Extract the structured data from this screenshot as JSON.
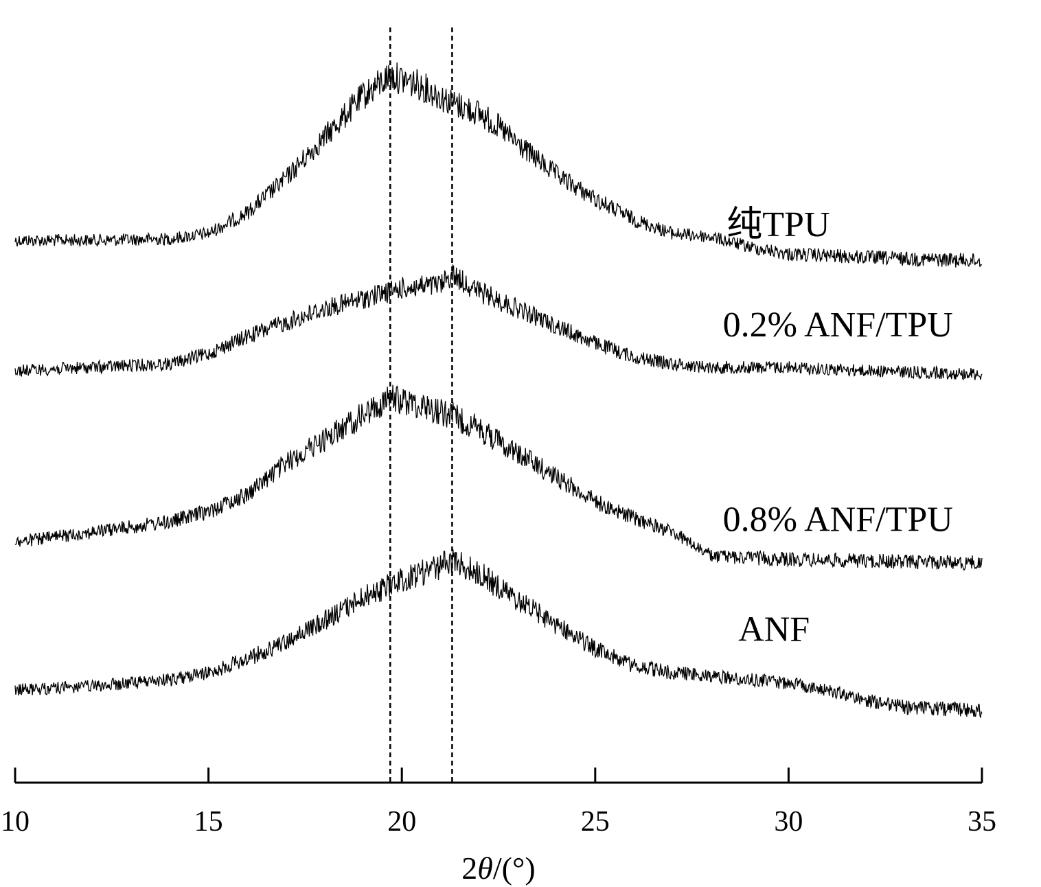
{
  "chart_data": {
    "type": "line",
    "title": "",
    "xlabel_prefix": "2",
    "xlabel_theta": "θ",
    "xlabel_suffix": "/(°)",
    "ylabel": "",
    "xlim": [
      10,
      35
    ],
    "xticks": [
      "10",
      "15",
      "20",
      "25",
      "30",
      "35"
    ],
    "y_axis_shown": false,
    "y_units": "stacked intensity (a.u., offset)",
    "reference_lines_x": [
      19.7,
      21.3
    ],
    "series": [
      {
        "name": "纯TPU",
        "label_x": 28.4,
        "baseline": 350,
        "points": [
          [
            10,
            0
          ],
          [
            12,
            0
          ],
          [
            14,
            2
          ],
          [
            15,
            10
          ],
          [
            16,
            40
          ],
          [
            17,
            90
          ],
          [
            18,
            150
          ],
          [
            19,
            210
          ],
          [
            19.7,
            240
          ],
          [
            20.5,
            225
          ],
          [
            21.3,
            200
          ],
          [
            22,
            185
          ],
          [
            22.5,
            165
          ],
          [
            23,
            140
          ],
          [
            24,
            95
          ],
          [
            25,
            60
          ],
          [
            26,
            30
          ],
          [
            27,
            10
          ],
          [
            28,
            5
          ],
          [
            29,
            -10
          ],
          [
            30,
            -20
          ],
          [
            32,
            -25
          ],
          [
            35,
            -30
          ]
        ]
      },
      {
        "name": "0.2% ANF/TPU",
        "label_x": 28.3,
        "baseline": 540,
        "points": [
          [
            10,
            0
          ],
          [
            12,
            5
          ],
          [
            14,
            10
          ],
          [
            15,
            25
          ],
          [
            16,
            50
          ],
          [
            17,
            70
          ],
          [
            18,
            90
          ],
          [
            19,
            105
          ],
          [
            20,
            120
          ],
          [
            21,
            125
          ],
          [
            21.3,
            140
          ],
          [
            22,
            115
          ],
          [
            23,
            90
          ],
          [
            24,
            65
          ],
          [
            25,
            40
          ],
          [
            26,
            20
          ],
          [
            27,
            10
          ],
          [
            28,
            5
          ],
          [
            30,
            5
          ],
          [
            32,
            0
          ],
          [
            35,
            -5
          ]
        ]
      },
      {
        "name": "0.8% ANF/TPU",
        "label_x": 28.3,
        "baseline": 790,
        "points": [
          [
            10,
            0
          ],
          [
            12,
            15
          ],
          [
            14,
            30
          ],
          [
            15,
            45
          ],
          [
            16,
            70
          ],
          [
            17,
            115
          ],
          [
            18,
            150
          ],
          [
            19,
            185
          ],
          [
            19.7,
            210
          ],
          [
            20.5,
            200
          ],
          [
            21.3,
            185
          ],
          [
            22,
            165
          ],
          [
            23,
            130
          ],
          [
            24,
            95
          ],
          [
            25,
            60
          ],
          [
            26,
            35
          ],
          [
            27,
            15
          ],
          [
            28,
            -20
          ],
          [
            30,
            -25
          ],
          [
            35,
            -30
          ]
        ]
      },
      {
        "name": "ANF",
        "label_x": 28.7,
        "baseline": 1005,
        "points": [
          [
            10,
            0
          ],
          [
            12,
            5
          ],
          [
            14,
            15
          ],
          [
            15,
            25
          ],
          [
            16,
            45
          ],
          [
            17,
            70
          ],
          [
            18,
            100
          ],
          [
            19,
            135
          ],
          [
            20,
            160
          ],
          [
            21,
            180
          ],
          [
            21.3,
            190
          ],
          [
            22,
            170
          ],
          [
            23,
            130
          ],
          [
            24,
            95
          ],
          [
            25,
            60
          ],
          [
            26,
            35
          ],
          [
            27,
            25
          ],
          [
            28,
            20
          ],
          [
            29,
            15
          ],
          [
            30,
            10
          ],
          [
            31,
            0
          ],
          [
            32,
            -15
          ],
          [
            33,
            -25
          ],
          [
            35,
            -30
          ]
        ]
      }
    ]
  }
}
